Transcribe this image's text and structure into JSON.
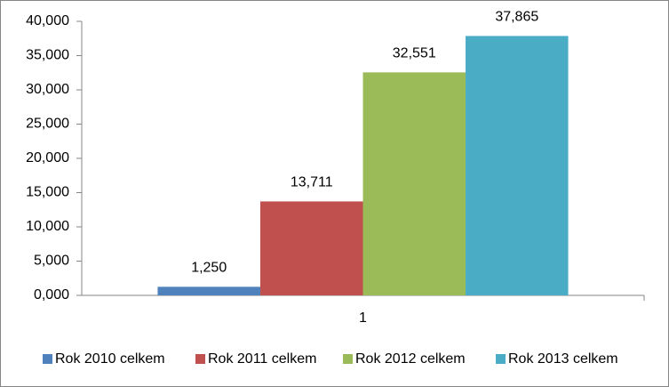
{
  "chart_data": {
    "type": "bar",
    "categories": [
      "1"
    ],
    "series": [
      {
        "name": "Rok 2010 celkem",
        "color": "#4f81bd",
        "values": [
          1.25
        ],
        "value_labels": [
          "1,250"
        ]
      },
      {
        "name": "Rok 2011 celkem",
        "color": "#c0504d",
        "values": [
          13.711
        ],
        "value_labels": [
          "13,711"
        ]
      },
      {
        "name": "Rok 2012 celkem",
        "color": "#9bbb59",
        "values": [
          32.551
        ],
        "value_labels": [
          "32,551"
        ]
      },
      {
        "name": "Rok 2013 celkem",
        "color": "#4bacc6",
        "values": [
          37.865
        ],
        "value_labels": [
          "37,865"
        ]
      }
    ],
    "ylim": [
      0,
      40
    ],
    "yticks": [
      {
        "value": 0,
        "label": "0,000"
      },
      {
        "value": 5,
        "label": "5,000"
      },
      {
        "value": 10,
        "label": "10,000"
      },
      {
        "value": 15,
        "label": "15,000"
      },
      {
        "value": 20,
        "label": "20,000"
      },
      {
        "value": 25,
        "label": "25,000"
      },
      {
        "value": 30,
        "label": "30,000"
      },
      {
        "value": 35,
        "label": "35,000"
      },
      {
        "value": 40,
        "label": "40,000"
      }
    ],
    "grid": false,
    "legend": "bottom"
  }
}
